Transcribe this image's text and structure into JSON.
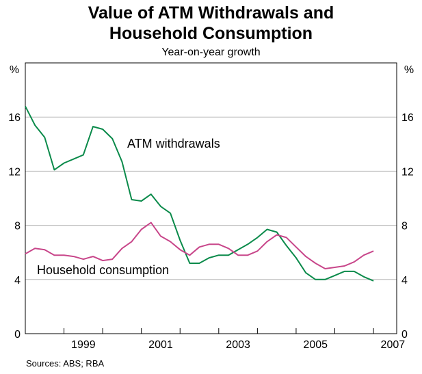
{
  "chart_data": {
    "type": "line",
    "title": "Value of ATM Withdrawals and Household Consumption",
    "title_lines": [
      "Value of ATM Withdrawals and",
      "Household Consumption"
    ],
    "subtitle": "Year-on-year growth",
    "ylabel_left": "%",
    "ylabel_right": "%",
    "ylim": [
      0,
      20
    ],
    "y_ticks": [
      0,
      4,
      8,
      12,
      16
    ],
    "y_tick_labels": [
      "0",
      "4",
      "8",
      "12",
      "16"
    ],
    "xlim": [
      1998.0,
      2007.6
    ],
    "x_tick_labels": [
      {
        "year": 1999,
        "label": "1999"
      },
      {
        "year": 2001,
        "label": "2001"
      },
      {
        "year": 2003,
        "label": "2003"
      },
      {
        "year": 2005,
        "label": "2005"
      },
      {
        "year": 2007,
        "label": "2007"
      }
    ],
    "gridlines": true,
    "series": [
      {
        "name": "ATM withdrawals",
        "label": "ATM withdrawals",
        "color": "#0a8a4a",
        "x": [
          1998.0,
          1998.25,
          1998.5,
          1998.75,
          1999.0,
          1999.25,
          1999.5,
          1999.75,
          2000.0,
          2000.25,
          2000.5,
          2000.75,
          2001.0,
          2001.25,
          2001.5,
          2001.75,
          2002.0,
          2002.25,
          2002.5,
          2002.75,
          2003.0,
          2003.25,
          2003.5,
          2003.75,
          2004.0,
          2004.25,
          2004.5,
          2004.75,
          2005.0,
          2005.25,
          2005.5,
          2005.75,
          2006.0,
          2006.25,
          2006.5,
          2006.75,
          2007.0
        ],
        "values": [
          16.8,
          15.4,
          14.5,
          12.1,
          12.6,
          12.9,
          13.2,
          15.3,
          15.1,
          14.4,
          12.7,
          9.9,
          9.8,
          10.3,
          9.4,
          8.9,
          6.9,
          5.2,
          5.2,
          5.6,
          5.8,
          5.8,
          6.2,
          6.6,
          7.1,
          7.7,
          7.5,
          6.5,
          5.6,
          4.5,
          4.0,
          4.0,
          4.3,
          4.6,
          4.6,
          4.2,
          3.9
        ]
      },
      {
        "name": "Household consumption",
        "label": "Household consumption",
        "color": "#c8468a",
        "x": [
          1998.0,
          1998.25,
          1998.5,
          1998.75,
          1999.0,
          1999.25,
          1999.5,
          1999.75,
          2000.0,
          2000.25,
          2000.5,
          2000.75,
          2001.0,
          2001.25,
          2001.5,
          2001.75,
          2002.0,
          2002.25,
          2002.5,
          2002.75,
          2003.0,
          2003.25,
          2003.5,
          2003.75,
          2004.0,
          2004.25,
          2004.5,
          2004.75,
          2005.0,
          2005.25,
          2005.5,
          2005.75,
          2006.0,
          2006.25,
          2006.5,
          2006.75,
          2007.0
        ],
        "values": [
          5.9,
          6.3,
          6.2,
          5.8,
          5.8,
          5.7,
          5.5,
          5.7,
          5.4,
          5.5,
          6.3,
          6.8,
          7.7,
          8.2,
          7.2,
          6.8,
          6.2,
          5.8,
          6.4,
          6.6,
          6.6,
          6.3,
          5.8,
          5.8,
          6.1,
          6.8,
          7.3,
          7.1,
          6.4,
          5.7,
          5.2,
          4.8,
          4.9,
          5.0,
          5.3,
          5.8,
          6.1
        ]
      }
    ]
  },
  "source_note": "Sources: ABS; RBA"
}
